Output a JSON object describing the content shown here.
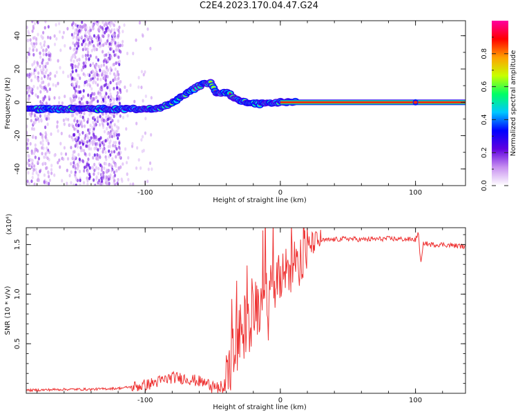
{
  "title": "C2E4.2023.170.04.47.G24",
  "chart_data": [
    {
      "type": "heatmap",
      "xlabel": "Height of straight line (km)",
      "ylabel": "Frequency (Hz)",
      "xlim": [
        -188,
        137
      ],
      "ylim": [
        -50,
        49
      ],
      "x_ticks": [
        -100,
        0,
        100
      ],
      "y_ticks": [
        -40,
        -20,
        0,
        20,
        40
      ],
      "colorbar": {
        "label": "Normalized spectral amplitude",
        "range": [
          0,
          1
        ],
        "ticks": [
          0.0,
          0.2,
          0.4,
          0.6,
          0.8
        ],
        "colors": [
          "#ffffff",
          "#c890f0",
          "#6000e0",
          "#0000ff",
          "#00c8ff",
          "#00ff64",
          "#c8ff00",
          "#ffa000",
          "#ff0000",
          "#ff00a0"
        ]
      },
      "ridge": [
        {
          "x": -188,
          "y": -4
        },
        {
          "x": -120,
          "y": -4
        },
        {
          "x": -90,
          "y": -4
        },
        {
          "x": -80,
          "y": 0
        },
        {
          "x": -70,
          "y": 5
        },
        {
          "x": -60,
          "y": 10
        },
        {
          "x": -52,
          "y": 12
        },
        {
          "x": -47,
          "y": 5
        },
        {
          "x": -40,
          "y": 6
        },
        {
          "x": -32,
          "y": 2
        },
        {
          "x": -25,
          "y": 0
        },
        {
          "x": -15,
          "y": -1
        },
        {
          "x": -5,
          "y": 0
        },
        {
          "x": 0,
          "y": 0
        },
        {
          "x": 137,
          "y": 0
        }
      ]
    },
    {
      "type": "line",
      "xlabel": "Height of straight line (km)",
      "ylabel": "SNR (10 * v/v)",
      "y_multiplier": "(x10⁴)",
      "xlim": [
        -188,
        137
      ],
      "ylim": [
        0,
        1.67
      ],
      "x_ticks": [
        -100,
        0,
        100
      ],
      "y_ticks": [
        0.5,
        1.0,
        1.5
      ],
      "color": "#ee3333",
      "series": [
        {
          "x": [
            -188,
            -160,
            -140,
            -120,
            -100,
            -90,
            -80,
            -70,
            -60,
            -50,
            -42,
            -38,
            -35,
            -30,
            -25,
            -20,
            -15,
            -10,
            -5,
            0,
            5,
            10,
            15,
            20,
            25,
            30,
            40,
            50,
            60,
            80,
            100,
            102,
            104,
            106,
            110,
            120,
            137
          ],
          "y": [
            0.03,
            0.04,
            0.04,
            0.05,
            0.08,
            0.12,
            0.16,
            0.15,
            0.12,
            0.08,
            0.06,
            0.2,
            0.35,
            0.55,
            0.72,
            0.82,
            0.9,
            0.98,
            1.05,
            1.12,
            1.2,
            1.3,
            1.4,
            1.48,
            1.52,
            1.54,
            1.55,
            1.56,
            1.55,
            1.56,
            1.55,
            1.62,
            1.3,
            1.52,
            1.5,
            1.5,
            1.48
          ]
        }
      ]
    }
  ]
}
